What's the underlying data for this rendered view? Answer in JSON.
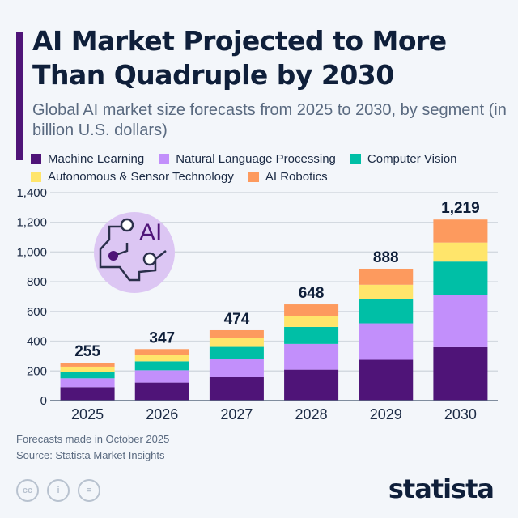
{
  "title": "AI Market Projected to More Than Quadruple by 2030",
  "subtitle": "Global AI market size forecasts from 2025 to 2030, by segment (in billion U.S. dollars)",
  "footer": {
    "note": "Forecasts made in October 2025",
    "source": "Source: Statista Market Insights",
    "brand": "statista"
  },
  "illustration": {
    "label": "AI"
  },
  "chart_data": {
    "type": "bar",
    "stacked": true,
    "categories": [
      "2025",
      "2026",
      "2027",
      "2028",
      "2029",
      "2030"
    ],
    "series": [
      {
        "name": "Machine Learning",
        "color": "#4f1478",
        "values": [
          91,
          122,
          158,
          209,
          275,
          360
        ]
      },
      {
        "name": "Natural Language Processing",
        "color": "#c28ffb",
        "values": [
          60,
          83,
          122,
          173,
          245,
          351
        ]
      },
      {
        "name": "Computer Vision",
        "color": "#00bfa6",
        "values": [
          44,
          60,
          82,
          114,
          162,
          225
        ]
      },
      {
        "name": "Autonomous & Sensor Technology",
        "color": "#ffe56b",
        "values": [
          34,
          44,
          60,
          75,
          98,
          128
        ]
      },
      {
        "name": "AI Robotics",
        "color": "#fd9a5e",
        "values": [
          26,
          38,
          52,
          77,
          108,
          155
        ]
      }
    ],
    "totals": [
      "255",
      "347",
      "474",
      "648",
      "888",
      "1,219"
    ],
    "ylim": [
      0,
      1400
    ],
    "yticks": [
      "0",
      "200",
      "400",
      "600",
      "800",
      "1,000",
      "1,200",
      "1,400"
    ],
    "grid": true,
    "legend": "top"
  }
}
